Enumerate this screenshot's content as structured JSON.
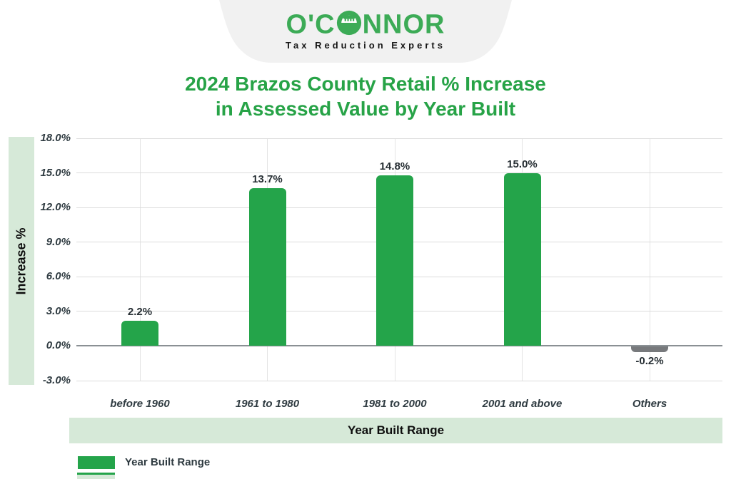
{
  "logo": {
    "brand_part1": "O'C",
    "brand_part2": "NNOR",
    "brand_full": "O'CONNOR",
    "tagline": "Tax Reduction Experts",
    "brand_color": "#3cab56"
  },
  "title": {
    "line1": "2024 Brazos County Retail % Increase",
    "line2": "in Assessed Value by Year Built",
    "color": "#27a347"
  },
  "chart_data": {
    "type": "bar",
    "title": "2024 Brazos County Retail % Increase in Assessed Value by Year Built",
    "categories": [
      "before 1960",
      "1961 to 1980",
      "1981 to 2000",
      "2001 and above",
      "Others"
    ],
    "values": [
      2.2,
      13.7,
      14.8,
      15.0,
      -0.2
    ],
    "value_labels": [
      "2.2%",
      "13.7%",
      "14.8%",
      "15.0%",
      "-0.2%"
    ],
    "bar_colors": [
      "#24a44a",
      "#24a44a",
      "#24a44a",
      "#24a44a",
      "#77797c"
    ],
    "xlabel": "Year Built Range",
    "ylabel": "Increase %",
    "ylim": [
      -3,
      18
    ],
    "ytick_step": 3,
    "yticks": [
      18,
      15,
      12,
      9,
      6,
      3,
      0,
      -3
    ],
    "ytick_labels": [
      "18.0%",
      "15.0%",
      "12.0%",
      "9.0%",
      "6.0%",
      "3.0%",
      "0.0%",
      "-3.0%"
    ],
    "grid": true,
    "zero_line_color": "#8a9094",
    "gridline_color": "#dcdcdc",
    "legend": {
      "position": "bottom-left",
      "items": [
        {
          "label": "Year Built Range",
          "color": "#24a44a"
        }
      ]
    }
  },
  "bands": {
    "band_color": "#d6e9d8"
  }
}
